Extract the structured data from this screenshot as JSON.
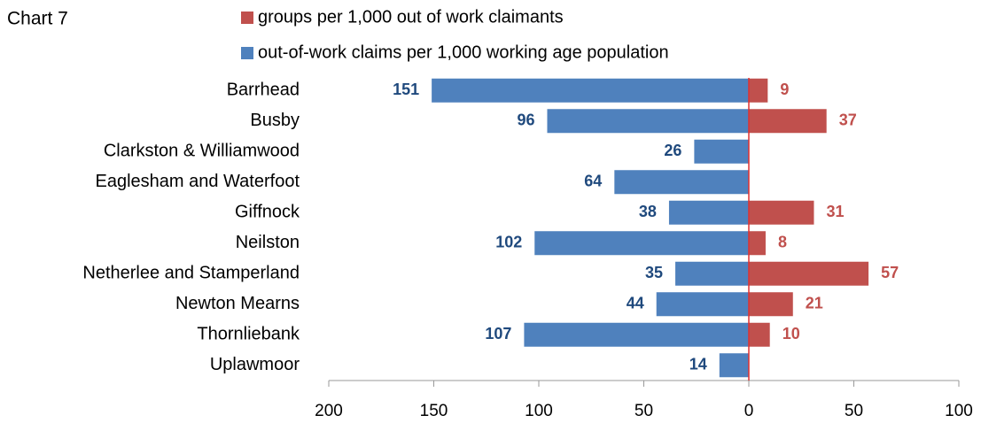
{
  "chart_data": {
    "type": "bar",
    "orientation": "horizontal",
    "title": "Chart 7",
    "categories": [
      "Barrhead",
      "Busby",
      "Clarkston & Williamwood",
      "Eaglesham and Waterfoot",
      "Giffnock",
      "Neilston",
      "Netherlee and Stamperland",
      "Newton Mearns",
      "Thornliebank",
      "Uplawmoor"
    ],
    "series": [
      {
        "name": "groups per 1,000 out of work claimants",
        "color": "#c0504d",
        "label_color": "#c0504d",
        "values": [
          9,
          37,
          null,
          null,
          31,
          8,
          57,
          21,
          10,
          null
        ]
      },
      {
        "name": "out-of-work claims per 1,000 working age population",
        "color": "#4f81bd",
        "label_color": "#1f497d",
        "values": [
          -151,
          -96,
          -26,
          -64,
          -38,
          -102,
          -35,
          -44,
          -107,
          -14
        ],
        "value_labels": [
          "151",
          "96",
          "26",
          "64",
          "38",
          "102",
          "35",
          "44",
          "107",
          "14"
        ]
      }
    ],
    "xlim": [
      -200,
      100
    ],
    "xticks": [
      {
        "value": -200,
        "label": "200"
      },
      {
        "value": -150,
        "label": "150"
      },
      {
        "value": -100,
        "label": "100"
      },
      {
        "value": -50,
        "label": "50"
      },
      0,
      50,
      100
    ],
    "zero_line_color": "#e03030"
  }
}
